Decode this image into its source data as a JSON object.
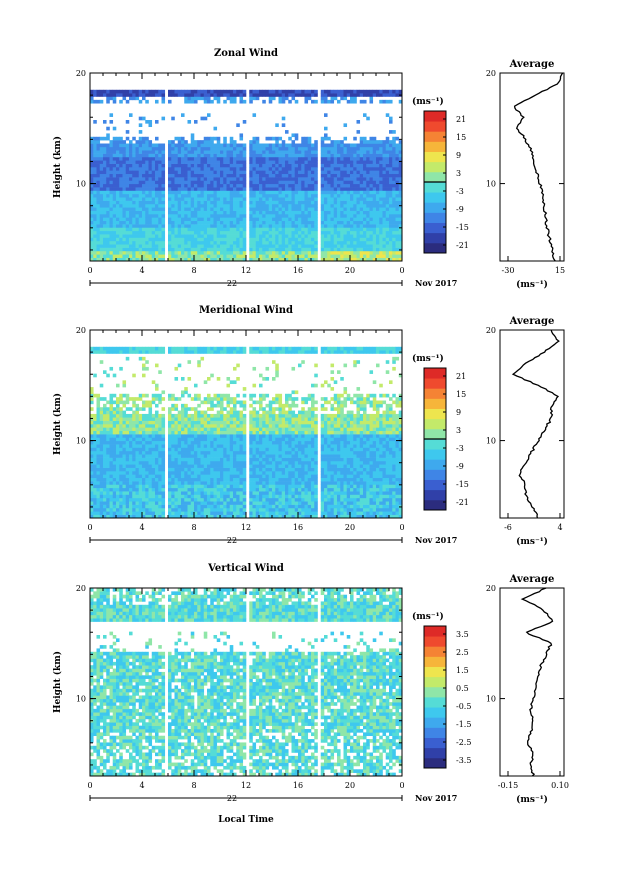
{
  "xlabel": "Local Time",
  "date_label": "22",
  "month_label": "Nov 2017",
  "units_label": "(ms⁻¹)",
  "avg_title": "Average",
  "height_label": "Height (km)",
  "x_ticks": [
    "0",
    "4",
    "8",
    "12",
    "16",
    "20",
    "0"
  ],
  "y_ticks": [
    "20",
    "10"
  ],
  "colormap": [
    "#2b2c7e",
    "#3040a8",
    "#3a5fd0",
    "#3f85e6",
    "#3ea9ee",
    "#3ec8ee",
    "#55dcd6",
    "#8fe6a8",
    "#c3ea6a",
    "#eee54e",
    "#f6b53a",
    "#f58334",
    "#ef4a2e",
    "#de2a27"
  ],
  "chart_data": [
    {
      "type": "heatmap",
      "title": "Zonal Wind",
      "ylabel": "Height (km)",
      "xlabel": "",
      "x_range_hours": [
        0,
        24
      ],
      "y_range_km": [
        3,
        20
      ],
      "gaps_hours": [
        [
          5.7,
          5.95
        ],
        [
          12.0,
          12.25
        ],
        [
          17.6,
          17.85
        ]
      ],
      "colorbar_ticks": [
        "21",
        "15",
        "9",
        "3",
        "-3",
        "-9",
        "-15",
        "-21"
      ],
      "colorbar_range": [
        -24,
        24
      ],
      "profile_title": "Average",
      "profile_xticks": [
        "-30",
        "15"
      ],
      "profile_xrange": [
        -30,
        15
      ],
      "profile_height_km": [
        3,
        4,
        5,
        6,
        7,
        8,
        9,
        10,
        11,
        12,
        13,
        14,
        15,
        16,
        17,
        18,
        19,
        20
      ],
      "profile_values": [
        8,
        7,
        5,
        3,
        2,
        1,
        0,
        -2,
        -4,
        -6,
        -8,
        -12,
        -18,
        -14,
        -20,
        -5,
        10,
        14
      ]
    },
    {
      "type": "heatmap",
      "title": "Meridional Wind",
      "ylabel": "Height (km)",
      "xlabel": "",
      "x_range_hours": [
        0,
        24
      ],
      "y_range_km": [
        3,
        20
      ],
      "gaps_hours": [
        [
          5.7,
          5.95
        ],
        [
          12.0,
          12.25
        ],
        [
          17.6,
          17.85
        ]
      ],
      "colorbar_ticks": [
        "21",
        "15",
        "9",
        "3",
        "-3",
        "-9",
        "-15",
        "-21"
      ],
      "colorbar_range": [
        -24,
        24
      ],
      "profile_title": "Average",
      "profile_xticks": [
        "-6",
        "4"
      ],
      "profile_xrange": [
        -6,
        4
      ],
      "profile_height_km": [
        3,
        4,
        5,
        6,
        7,
        8,
        9,
        10,
        11,
        12,
        13,
        14,
        15,
        16,
        17,
        18,
        19,
        20
      ],
      "profile_values": [
        0,
        -1,
        -2,
        -2,
        -3,
        -2,
        -1,
        0,
        1,
        2,
        2,
        3,
        0,
        -4,
        -2,
        1,
        3,
        2
      ]
    },
    {
      "type": "heatmap",
      "title": "Vertical Wind",
      "ylabel": "Height (km)",
      "xlabel": "Local Time",
      "x_range_hours": [
        0,
        24
      ],
      "y_range_km": [
        3,
        20
      ],
      "gaps_hours": [
        [
          5.7,
          5.95
        ],
        [
          12.0,
          12.25
        ],
        [
          17.6,
          17.85
        ]
      ],
      "colorbar_ticks": [
        "3.5",
        "2.5",
        "1.5",
        "0.5",
        "-0.5",
        "-1.5",
        "-2.5",
        "-3.5"
      ],
      "colorbar_range": [
        -4,
        4
      ],
      "profile_title": "Average",
      "profile_xticks": [
        "-0.15",
        "0.10"
      ],
      "profile_xrange": [
        -0.15,
        0.1
      ],
      "profile_height_km": [
        3,
        4,
        5,
        6,
        7,
        8,
        9,
        10,
        11,
        12,
        13,
        14,
        15,
        16,
        17,
        18,
        19,
        20
      ],
      "profile_values": [
        -0.02,
        -0.03,
        -0.02,
        -0.04,
        -0.03,
        -0.02,
        -0.03,
        -0.02,
        -0.01,
        0.0,
        0.01,
        0.03,
        0.05,
        -0.05,
        0.06,
        0.02,
        -0.06,
        0.03
      ]
    }
  ]
}
